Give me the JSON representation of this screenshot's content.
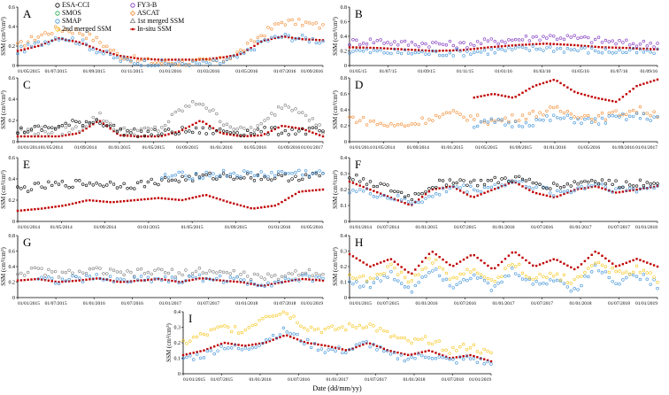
{
  "figure": {
    "xlabel": "Date (dd/mm/yy)",
    "ylabel": "SSM (cm³/cm³)"
  },
  "legend": [
    {
      "label": "ESA-CCI",
      "color": "#000000",
      "marker": "circle"
    },
    {
      "label": "FY3-B",
      "color": "#7b2fbe",
      "marker": "circle"
    },
    {
      "label": "SMOS",
      "color": "#1aa64a",
      "marker": "circle"
    },
    {
      "label": "ASCAT",
      "color": "#f28a2e",
      "marker": "diamond"
    },
    {
      "label": "SMAP",
      "color": "#3b8fd6",
      "marker": "circle"
    },
    {
      "label": "1st merged SSM",
      "color": "#7f7f7f",
      "marker": "triangle"
    },
    {
      "label": "2nd merged SSM",
      "color": "#f5c518",
      "marker": "circle"
    },
    {
      "label": "In-situ SSM",
      "color": "#c00000",
      "marker": "square-line"
    }
  ],
  "chart_data": [
    {
      "panel": "A",
      "type": "scatter",
      "ylim": [
        0,
        0.6
      ],
      "yticks": [
        "0",
        "0.2",
        "0.4",
        "0.6"
      ],
      "xticks": [
        "01/05/2015",
        "01/07/2015",
        "01/09/2015",
        "01/11/2015",
        "01/01/2016",
        "01/03/2016",
        "01/05/2016",
        "01/07/2016",
        "01/09/2016"
      ],
      "series": [
        {
          "name": "In-situ SSM",
          "values": [
            0.15,
            0.2,
            0.28,
            0.24,
            0.16,
            0.1,
            0.07,
            0.06,
            0.06,
            0.06,
            0.08,
            0.12,
            0.25,
            0.3,
            0.27,
            0.26
          ]
        },
        {
          "name": "ASCAT",
          "values": [
            0.2,
            0.3,
            0.38,
            0.35,
            0.25,
            0.1,
            0.05,
            0.03,
            0.03,
            0.04,
            0.05,
            0.15,
            0.32,
            0.45,
            0.44,
            0.4
          ]
        },
        {
          "name": "SMAP",
          "values": [
            0.15,
            0.22,
            0.3,
            0.25,
            0.15,
            0.06,
            0.03,
            0.02,
            0.02,
            0.02,
            0.03,
            0.1,
            0.25,
            0.3,
            0.28,
            0.25
          ]
        }
      ]
    },
    {
      "panel": "B",
      "type": "scatter",
      "ylim": [
        0,
        0.8
      ],
      "yticks": [
        "0",
        "0.2",
        "0.4",
        "0.6",
        "0.8"
      ],
      "xticks": [
        "01/05/15",
        "01/07/15",
        "01/09/15",
        "01/11/15",
        "01/01/16",
        "01/03/16",
        "01/05/16",
        "01/07/16",
        "01/09/16"
      ],
      "series": [
        {
          "name": "In-situ SSM",
          "values": [
            0.25,
            0.24,
            0.22,
            0.2,
            0.21,
            0.25,
            0.28,
            0.3,
            0.28,
            0.25,
            0.24,
            0.22
          ]
        },
        {
          "name": "FY3-B",
          "values": [
            0.32,
            0.34,
            0.3,
            0.3,
            0.28,
            0.33,
            0.36,
            0.4,
            0.38,
            0.34,
            0.3,
            0.3
          ]
        },
        {
          "name": "SMAP",
          "values": [
            0.2,
            0.19,
            0.18,
            0.17,
            0.18,
            0.2,
            0.22,
            0.24,
            0.22,
            0.2,
            0.19,
            0.18
          ]
        }
      ]
    },
    {
      "panel": "C",
      "type": "scatter",
      "ylim": [
        0,
        0.6
      ],
      "yticks": [
        "0",
        "0.2",
        "0.4",
        "0.6"
      ],
      "xticks": [
        "01/01/2014",
        "01/05/2014",
        "01/09/2014",
        "01/01/2015",
        "01/05/2015",
        "01/09/2015",
        "01/01/2016",
        "01/05/2016",
        "01/09/2016",
        "01/01/2017"
      ],
      "series": [
        {
          "name": "In-situ SSM",
          "values": [
            0.05,
            0.05,
            0.05,
            0.08,
            0.2,
            0.06,
            0.05,
            0.05,
            0.1,
            0.2,
            0.08,
            0.05,
            0.06,
            0.15,
            0.12,
            0.05
          ]
        },
        {
          "name": "1st merged SSM",
          "values": [
            0.1,
            0.1,
            0.1,
            0.12,
            0.25,
            0.1,
            0.1,
            0.12,
            0.3,
            0.38,
            0.2,
            0.1,
            0.15,
            0.35,
            0.3,
            0.1
          ]
        },
        {
          "name": "ESA-CCI",
          "values": [
            0.1,
            0.12,
            0.14,
            0.18,
            0.2,
            0.1,
            0.08,
            0.08,
            0.1,
            0.1,
            0.1,
            0.09,
            0.1,
            0.1,
            0.1,
            0.1
          ]
        }
      ]
    },
    {
      "panel": "D",
      "type": "scatter",
      "ylim": [
        0,
        0.8
      ],
      "yticks": [
        "0",
        "0.2",
        "0.4",
        "0.6",
        "0.8"
      ],
      "xticks": [
        "01/01/2014",
        "01/05/2014",
        "01/09/2014",
        "01/01/2015",
        "01/05/2015",
        "01/09/2015",
        "01/01/2016",
        "01/05/2016",
        "01/09/2016",
        "01/01/2017"
      ],
      "series": [
        {
          "name": "In-situ SSM",
          "values": [
            null,
            null,
            null,
            null,
            null,
            null,
            0.55,
            0.6,
            0.55,
            0.7,
            0.78,
            0.62,
            0.55,
            0.5,
            0.7,
            0.78
          ]
        },
        {
          "name": "ASCAT",
          "values": [
            0.3,
            0.25,
            0.2,
            0.22,
            0.3,
            0.35,
            0.3,
            0.25,
            0.3,
            0.35,
            0.4,
            0.35,
            0.3,
            0.35,
            0.4,
            0.35
          ]
        },
        {
          "name": "SMAP",
          "values": [
            null,
            null,
            null,
            null,
            null,
            null,
            0.2,
            0.25,
            0.22,
            0.25,
            0.3,
            0.28,
            0.25,
            0.3,
            0.32,
            0.3
          ]
        }
      ]
    },
    {
      "panel": "E",
      "type": "scatter",
      "ylim": [
        0,
        0.6
      ],
      "yticks": [
        "0",
        "0.2",
        "0.4",
        "0.6"
      ],
      "xticks": [
        "01/01/2014",
        "01/05/2014",
        "01/09/2014",
        "01/01/2015",
        "01/05/2015",
        "01/09/2015",
        "01/01/2016",
        "01/05/2016"
      ],
      "series": [
        {
          "name": "ESA-CCI",
          "values": [
            0.3,
            0.33,
            0.35,
            0.36,
            0.35,
            0.34,
            0.38,
            0.4,
            0.42,
            0.43,
            0.42,
            0.41,
            0.42,
            0.43
          ]
        },
        {
          "name": "In-situ SSM",
          "values": [
            0.1,
            0.12,
            0.15,
            0.2,
            0.18,
            0.2,
            0.22,
            0.2,
            0.25,
            0.18,
            0.12,
            0.15,
            0.28,
            0.3
          ]
        },
        {
          "name": "SMAP",
          "values": [
            null,
            null,
            null,
            null,
            null,
            null,
            0.42,
            0.43,
            0.44,
            0.45,
            0.44,
            0.45,
            0.46,
            0.45
          ]
        }
      ]
    },
    {
      "panel": "F",
      "type": "scatter",
      "ylim": [
        0,
        0.4
      ],
      "yticks": [
        "0",
        "0.1",
        "0.2",
        "0.3",
        "0.4"
      ],
      "xticks": [
        "01/01/2014",
        "01/07/2014",
        "01/01/2015",
        "01/07/2015",
        "01/01/2016",
        "01/07/2016",
        "01/01/2017",
        "01/07/2017",
        "01/01/2018"
      ],
      "series": [
        {
          "name": "In-situ SSM",
          "values": [
            0.25,
            0.2,
            0.15,
            0.1,
            0.2,
            0.22,
            0.15,
            0.2,
            0.25,
            0.18,
            0.15,
            0.2,
            0.22,
            0.18,
            0.2,
            0.22
          ]
        },
        {
          "name": "SMAP",
          "values": [
            0.2,
            0.18,
            0.15,
            0.12,
            0.15,
            0.22,
            0.2,
            0.22,
            0.25,
            0.22,
            0.18,
            0.2,
            0.24,
            0.2,
            0.2,
            0.22
          ]
        },
        {
          "name": "ESA-CCI",
          "values": [
            0.28,
            0.25,
            0.2,
            0.15,
            0.22,
            0.26,
            0.24,
            0.25,
            0.27,
            0.24,
            0.22,
            0.24,
            0.26,
            0.23,
            0.24,
            0.26
          ]
        }
      ]
    },
    {
      "panel": "G",
      "type": "scatter",
      "ylim": [
        0,
        0.8
      ],
      "yticks": [
        "0",
        "0.2",
        "0.4",
        "0.6",
        "0.8"
      ],
      "xticks": [
        "01/01/2015",
        "01/07/2015",
        "01/01/2016",
        "01/07/2016",
        "01/01/2017",
        "01/07/2017",
        "01/01/2018",
        "01/07/2018",
        "01/01/2019"
      ],
      "series": [
        {
          "name": "In-situ SSM",
          "values": [
            0.22,
            0.24,
            0.2,
            0.22,
            0.25,
            0.2,
            0.22,
            0.24,
            0.2,
            0.25,
            0.22,
            0.2,
            0.15,
            0.2,
            0.24,
            0.22
          ]
        },
        {
          "name": "1st merged SSM",
          "values": [
            0.32,
            0.35,
            0.3,
            0.32,
            0.35,
            0.3,
            0.32,
            0.34,
            0.3,
            0.35,
            0.32,
            0.3,
            0.25,
            0.28,
            0.34,
            0.32
          ]
        },
        {
          "name": "SMAP",
          "values": [
            null,
            0.25,
            0.22,
            0.24,
            0.26,
            0.22,
            0.24,
            0.25,
            0.22,
            0.26,
            0.24,
            0.22,
            0.18,
            0.22,
            0.25,
            0.24
          ]
        }
      ]
    },
    {
      "panel": "H",
      "type": "scatter",
      "ylim": [
        0,
        0.4
      ],
      "yticks": [
        "0",
        "0.1",
        "0.2",
        "0.3",
        "0.4"
      ],
      "xticks": [
        "01/01/2015",
        "01/07/2015",
        "01/01/2016",
        "01/07/2016",
        "01/01/2017",
        "01/07/2017",
        "01/01/2018",
        "01/07/2018",
        "01/01/2019"
      ],
      "series": [
        {
          "name": "In-situ SSM",
          "values": [
            0.28,
            0.2,
            0.25,
            0.15,
            0.3,
            0.2,
            0.28,
            0.18,
            0.3,
            0.2,
            0.25,
            0.18,
            0.3,
            0.2,
            0.25,
            0.2
          ]
        },
        {
          "name": "SMAP",
          "values": [
            0.1,
            0.08,
            0.15,
            0.05,
            0.2,
            0.08,
            0.15,
            0.05,
            0.18,
            0.08,
            0.12,
            0.05,
            0.2,
            0.1,
            0.15,
            0.08
          ]
        },
        {
          "name": "2nd merged SSM",
          "values": [
            0.15,
            0.12,
            0.2,
            0.1,
            0.25,
            0.12,
            0.18,
            0.1,
            0.22,
            0.12,
            0.15,
            0.1,
            0.24,
            0.15,
            0.18,
            0.12
          ]
        }
      ]
    },
    {
      "panel": "I",
      "type": "scatter",
      "ylim": [
        0,
        0.4
      ],
      "yticks": [
        "0",
        "0.1",
        "0.2",
        "0.3",
        "0.4"
      ],
      "xticks": [
        "01/01/2015",
        "01/07/2015",
        "01/01/2016",
        "01/07/2016",
        "01/01/2017",
        "01/07/2017",
        "01/01/2018",
        "01/07/2018",
        "01/01/2019"
      ],
      "series": [
        {
          "name": "In-situ SSM",
          "values": [
            0.12,
            0.15,
            0.2,
            0.18,
            0.2,
            0.25,
            0.2,
            0.18,
            0.15,
            0.2,
            0.15,
            0.12,
            0.15,
            0.1,
            0.12,
            0.08
          ]
        },
        {
          "name": "2nd merged SSM",
          "values": [
            0.2,
            0.25,
            0.3,
            0.28,
            0.38,
            0.4,
            0.3,
            0.28,
            0.3,
            0.32,
            0.25,
            0.2,
            0.22,
            0.15,
            0.18,
            0.12
          ]
        },
        {
          "name": "SMAP",
          "values": [
            0.1,
            0.12,
            0.18,
            0.15,
            0.22,
            0.28,
            0.2,
            0.15,
            0.15,
            0.2,
            0.12,
            0.1,
            0.12,
            0.08,
            0.1,
            0.06
          ]
        }
      ]
    }
  ]
}
